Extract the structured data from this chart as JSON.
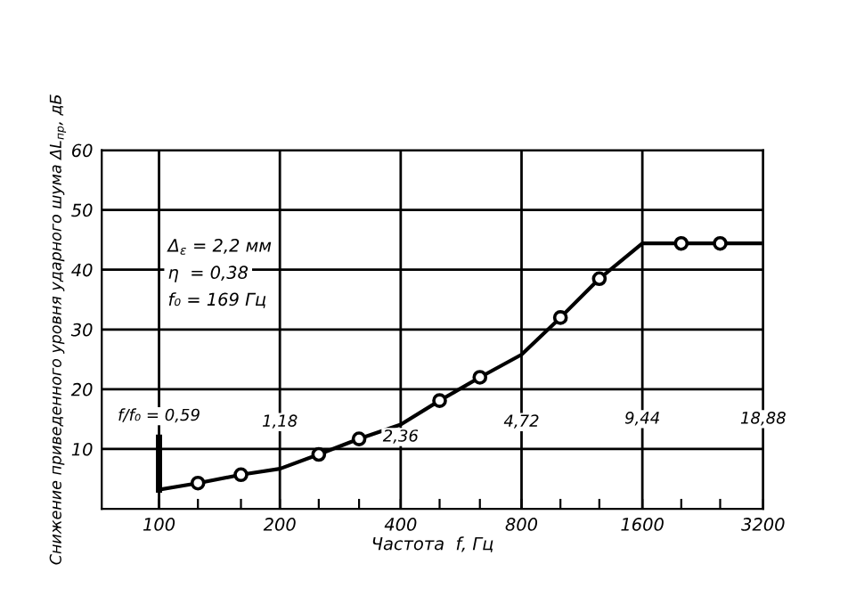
{
  "chart_data": {
    "type": "line",
    "xlabel": "Частота  f, Гц",
    "ylabel": "Снижение приведенного уровня ударного шума ΔL$_{пр}$, дБ",
    "log": "x",
    "xlim": [
      72,
      3200
    ],
    "xticks": [
      100,
      {
        "value": 125,
        "label": null
      },
      {
        "value": 160,
        "label": null
      },
      200,
      {
        "value": 250,
        "label": null
      },
      {
        "value": 315,
        "label": null
      },
      400,
      {
        "value": 500,
        "label": null
      },
      {
        "value": 630,
        "label": null
      },
      800,
      {
        "value": 1000,
        "label": null
      },
      {
        "value": 1250,
        "label": null
      },
      1600,
      {
        "value": 2000,
        "label": null
      },
      {
        "value": 2500,
        "label": null
      },
      3200
    ],
    "ylim": [
      0,
      60
    ],
    "yticks": [
      10,
      20,
      30,
      40,
      50,
      60
    ],
    "grid": true,
    "series": [
      {
        "color": "#000000",
        "marker": "none",
        "x": [
          100,
          125,
          160,
          200,
          250,
          315,
          400,
          500,
          630,
          800,
          1000,
          1250,
          1600,
          2000,
          2500,
          3150
        ],
        "values": [
          3.2,
          4.3,
          5.7,
          6.7,
          9.1,
          11.7,
          14.1,
          18.1,
          22.0,
          25.8,
          32.0,
          38.5,
          44.4,
          44.4,
          44.4,
          44.4
        ]
      },
      {
        "type": "scatter",
        "color": "#000000",
        "marker": "circle",
        "x": [
          125,
          160,
          250,
          315,
          500,
          630,
          1000,
          1250,
          2000,
          2500
        ],
        "values": [
          4.3,
          5.7,
          9.1,
          11.7,
          18.1,
          22.0,
          32.0,
          38.5,
          44.4,
          44.4
        ]
      },
      {
        "color": "#000000",
        "marker": "none",
        "x": [
          100,
          100
        ],
        "values": [
          3.2,
          11.9
        ]
      }
    ],
    "annotations": [
      "Δ$_{ε}$ = 2,2 мм",
      "η  = 0,38",
      "f₀ = 169 Гц",
      "f/f₀ = 0,59",
      {
        "text": "1,18",
        "x": 200,
        "y": 14.5
      },
      {
        "text": "2,36",
        "x": 400,
        "y": 12
      },
      {
        "text": "4,72",
        "x": 800,
        "y": 14.5
      },
      {
        "text": "9,44",
        "x": 1600,
        "y": 15
      },
      {
        "text": "18,88",
        "x": 3200,
        "y": 15
      }
    ]
  }
}
